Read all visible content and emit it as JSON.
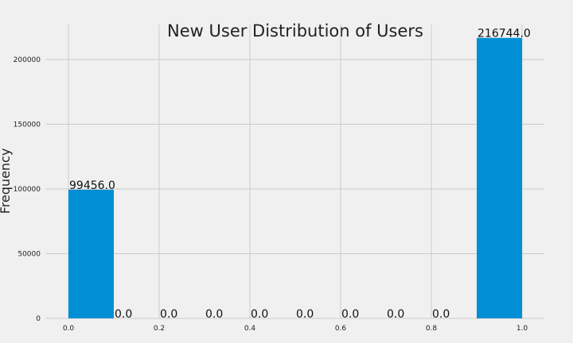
{
  "chart_data": {
    "type": "bar",
    "title": "New User Distribution of Users",
    "xlabel": "",
    "ylabel": "Frequency",
    "bins": [
      [
        0.0,
        0.1
      ],
      [
        0.1,
        0.2
      ],
      [
        0.2,
        0.3
      ],
      [
        0.3,
        0.4
      ],
      [
        0.4,
        0.5
      ],
      [
        0.5,
        0.6
      ],
      [
        0.6,
        0.7
      ],
      [
        0.7,
        0.8
      ],
      [
        0.8,
        0.9
      ],
      [
        0.9,
        1.0
      ]
    ],
    "values": [
      99456,
      0,
      0,
      0,
      0,
      0,
      0,
      0,
      0,
      216744
    ],
    "value_labels": [
      "99456.0",
      "0.0",
      "0.0",
      "0.0",
      "0.0",
      "0.0",
      "0.0",
      "0.0",
      "0.0",
      "216744.0"
    ],
    "xlim": [
      0.0,
      1.0
    ],
    "ylim": [
      0,
      227000
    ],
    "x_ticks": [
      {
        "value": 0.0,
        "label": "0.0"
      },
      {
        "value": 0.2,
        "label": "0.2"
      },
      {
        "value": 0.4,
        "label": "0.4"
      },
      {
        "value": 0.6,
        "label": "0.6"
      },
      {
        "value": 0.8,
        "label": "0.8"
      },
      {
        "value": 1.0,
        "label": "1.0"
      }
    ],
    "y_ticks": [
      {
        "value": 0,
        "label": "0"
      },
      {
        "value": 50000,
        "label": "50000"
      },
      {
        "value": 100000,
        "label": "100000"
      },
      {
        "value": 150000,
        "label": "150000"
      },
      {
        "value": 200000,
        "label": "200000"
      }
    ],
    "grid": true,
    "bar_color": "#008fd5",
    "background_color": "#f0f0f0"
  }
}
